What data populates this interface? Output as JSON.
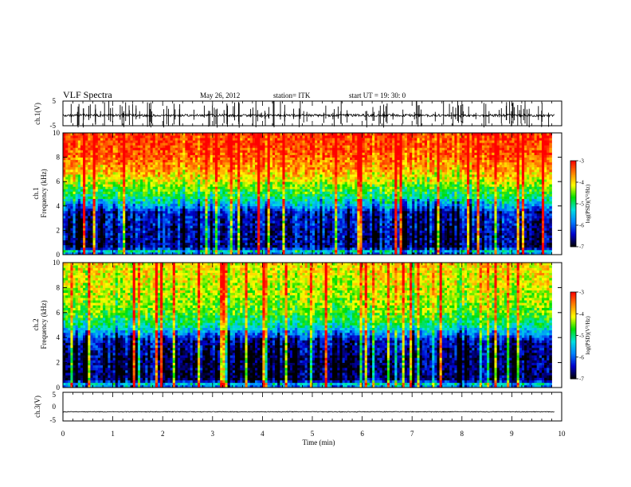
{
  "header": {
    "title": "VLF Spectra",
    "date": "May 26, 2012",
    "station": "station= ITK",
    "start_ut": "start UT =    19: 30: 0"
  },
  "chart_data": [
    {
      "type": "line",
      "panel": "ch1-waveform",
      "ylabel": "ch.1(V)",
      "ylim": [
        -5,
        5
      ],
      "yticks": [
        "5",
        "-5"
      ],
      "xlim": [
        0,
        10
      ],
      "baseline": -0.8,
      "noise_amplitude": 0.5,
      "spike_count": 140,
      "color": "#000000"
    },
    {
      "type": "heatmap",
      "panel": "ch1-spectrogram",
      "ylabel": "ch.1\nFrequency (kHz)",
      "ylim": [
        0,
        10
      ],
      "yticks": [
        "0",
        "2",
        "4",
        "6",
        "8",
        "10"
      ],
      "xlim": [
        0,
        9.8
      ],
      "band_profile": [
        {
          "f": 0.0,
          "level": -6.0
        },
        {
          "f": 0.3,
          "level": -5.2
        },
        {
          "f": 0.6,
          "level": -6.6
        },
        {
          "f": 2.0,
          "level": -6.5
        },
        {
          "f": 3.5,
          "level": -6.3
        },
        {
          "f": 4.0,
          "level": -5.6
        },
        {
          "f": 4.7,
          "level": -5.0
        },
        {
          "f": 5.4,
          "level": -4.6
        },
        {
          "f": 6.2,
          "level": -4.1
        },
        {
          "f": 7.0,
          "level": -3.7
        },
        {
          "f": 8.5,
          "level": -3.3
        },
        {
          "f": 10.0,
          "level": -3.2
        }
      ],
      "colorbar": {
        "label": "log(PSD)(V²/Hz)",
        "range": [
          -7,
          -3
        ],
        "ticks": [
          "-3",
          "-4",
          "-5",
          "-6",
          "-7"
        ]
      }
    },
    {
      "type": "heatmap",
      "panel": "ch2-spectrogram",
      "ylabel": "ch.2\nFrequency (kHz)",
      "ylim": [
        0,
        10
      ],
      "yticks": [
        "0",
        "2",
        "4",
        "6",
        "8",
        "10"
      ],
      "xlim": [
        0,
        9.8
      ],
      "band_profile": [
        {
          "f": 0.0,
          "level": -6.0
        },
        {
          "f": 0.3,
          "level": -5.4
        },
        {
          "f": 0.6,
          "level": -6.8
        },
        {
          "f": 2.5,
          "level": -6.8
        },
        {
          "f": 3.8,
          "level": -6.5
        },
        {
          "f": 4.4,
          "level": -5.7
        },
        {
          "f": 5.0,
          "level": -5.1
        },
        {
          "f": 6.0,
          "level": -4.6
        },
        {
          "f": 7.5,
          "level": -4.3
        },
        {
          "f": 10.0,
          "level": -4.0
        }
      ],
      "colorbar": {
        "label": "log(PSD)(V²/Hz)",
        "range": [
          -7,
          -3
        ],
        "ticks": [
          "-3",
          "-4",
          "-5",
          "-6",
          "-7"
        ]
      }
    },
    {
      "type": "line",
      "panel": "ch3-waveform",
      "ylabel": "ch.3(V)",
      "ylim": [
        -5,
        5
      ],
      "yticks": [
        "5",
        "0",
        "-5"
      ],
      "xlim": [
        0,
        10
      ],
      "xlabel": "Time (min)",
      "xticks": [
        "0",
        "1",
        "2",
        "3",
        "4",
        "5",
        "6",
        "7",
        "8",
        "9",
        "10"
      ],
      "baseline": -1.8,
      "noise_amplitude": 0.12,
      "spike_count": 0,
      "color": "#000000"
    }
  ],
  "colors": {
    "colormap": [
      "#000000",
      "#0000cc",
      "#0080ff",
      "#00e0e0",
      "#00e000",
      "#ffff00",
      "#ff8000",
      "#ff0000"
    ]
  }
}
